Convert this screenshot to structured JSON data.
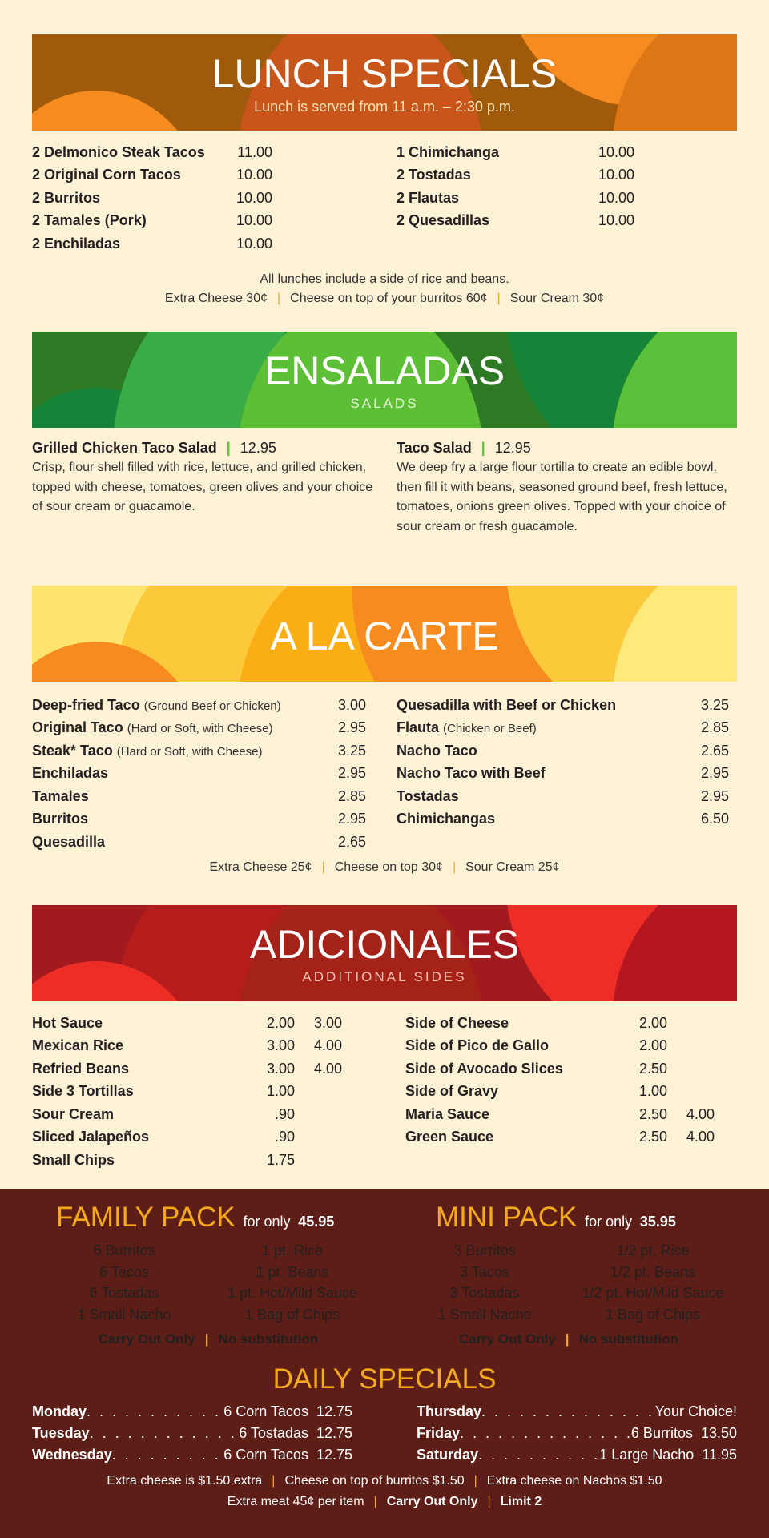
{
  "colors": {
    "background": "#fdf1d6",
    "dark_section": "#5c1e16",
    "accent": "#f5a91c",
    "lunch": "#e07b16",
    "salads": "#3aa845",
    "carte": "#fbc02d",
    "sides": "#b71c1c"
  },
  "lunch": {
    "title": "LUNCH SPECIALS",
    "subtitle": "Lunch is served from 11 a.m. – 2:30 p.m.",
    "left": [
      {
        "name": "2 Delmonico Steak Tacos",
        "price": "11.00"
      },
      {
        "name": "2 Original Corn Tacos",
        "price": "10.00"
      },
      {
        "name": "2 Burritos",
        "price": "10.00"
      },
      {
        "name": "2 Tamales (Pork)",
        "price": "10.00"
      },
      {
        "name": "2 Enchiladas",
        "price": "10.00"
      }
    ],
    "right": [
      {
        "name": "1 Chimichanga",
        "price": "10.00"
      },
      {
        "name": "2 Tostadas",
        "price": "10.00"
      },
      {
        "name": "2 Flautas",
        "price": "10.00"
      },
      {
        "name": "2 Quesadillas",
        "price": "10.00"
      }
    ],
    "note": "All lunches include a side of rice and beans.",
    "extras": [
      "Extra Cheese 30¢",
      "Cheese on top of your burritos 60¢",
      "Sour Cream 30¢"
    ]
  },
  "salads": {
    "title": "ENSALADAS",
    "subtitle": "SALADS",
    "items": [
      {
        "name": "Grilled Chicken Taco Salad",
        "price": "12.95",
        "desc": "Crisp, flour shell filled with rice, lettuce, and grilled chicken, topped with cheese, tomatoes, green olives and your choice of sour cream or guacamole."
      },
      {
        "name": "Taco Salad",
        "price": "12.95",
        "desc": "We deep fry a large flour tortilla to create an edible bowl, then fill it with beans, seasoned ground beef, fresh lettuce, tomatoes, onions green olives. Topped with your choice of sour cream or fresh guacamole."
      }
    ]
  },
  "carte": {
    "title": "A LA CARTE",
    "left": [
      {
        "name": "Deep-fried Taco",
        "detail": "(Ground Beef or Chicken)",
        "price": "3.00"
      },
      {
        "name": "Original Taco",
        "detail": "(Hard or Soft, with Cheese)",
        "price": "2.95"
      },
      {
        "name": "Steak* Taco",
        "detail": "(Hard or Soft, with Cheese)",
        "price": "3.25"
      },
      {
        "name": "Enchiladas",
        "price": "2.95"
      },
      {
        "name": "Tamales",
        "price": "2.85"
      },
      {
        "name": "Burritos",
        "price": "2.95"
      },
      {
        "name": "Quesadilla",
        "price": "2.65"
      }
    ],
    "right": [
      {
        "name": "Quesadilla with Beef or Chicken",
        "price": "3.25"
      },
      {
        "name": "Flauta",
        "detail": "(Chicken or Beef)",
        "price": "2.85"
      },
      {
        "name": "Nacho Taco",
        "price": "2.65"
      },
      {
        "name": "Nacho Taco with Beef",
        "price": "2.95"
      },
      {
        "name": "Tostadas",
        "price": "2.95"
      },
      {
        "name": "Chimichangas",
        "price": "6.50"
      }
    ],
    "extras": [
      "Extra Cheese 25¢",
      "Cheese on top 30¢",
      "Sour Cream 25¢"
    ]
  },
  "sides": {
    "title": "ADICIONALES",
    "subtitle": "ADDITIONAL SIDES",
    "left": [
      {
        "name": "Hot Sauce",
        "p1": "2.00",
        "p2": "3.00"
      },
      {
        "name": "Mexican Rice",
        "p1": "3.00",
        "p2": "4.00"
      },
      {
        "name": "Refried Beans",
        "p1": "3.00",
        "p2": "4.00"
      },
      {
        "name": "Side 3 Tortillas",
        "p1": "1.00"
      },
      {
        "name": "Sour Cream",
        "p1": ".90"
      },
      {
        "name": "Sliced Jalapeños",
        "p1": ".90"
      },
      {
        "name": "Small Chips",
        "p1": "1.75"
      }
    ],
    "right": [
      {
        "name": "Side of Cheese",
        "p1": "2.00"
      },
      {
        "name": "Side of Pico de Gallo",
        "p1": "2.00"
      },
      {
        "name": "Side of Avocado Slices",
        "p1": "2.50"
      },
      {
        "name": "Side of Gravy",
        "p1": "1.00"
      },
      {
        "name": "Maria Sauce",
        "p1": "2.50",
        "p2": "4.00"
      },
      {
        "name": "Green Sauce",
        "p1": "2.50",
        "p2": "4.00"
      }
    ]
  },
  "family": {
    "title": "FAMILY PACK",
    "for": "for only",
    "price": "45.95",
    "items": [
      "6 Burritos",
      "1 pt. Rice",
      "6 Tacos",
      "1 pt. Beans",
      "6 Tostadas",
      "1 pt. Hot/Mild Sauce",
      "1 Small Nacho",
      "1 Bag of Chips"
    ],
    "notes": [
      "Carry Out Only",
      "No substitution"
    ]
  },
  "mini": {
    "title": "MINI PACK",
    "for": "for only",
    "price": "35.95",
    "items": [
      "3 Burritos",
      "1/2 pt. Rice",
      "3 Tacos",
      "1/2 pt. Beans",
      "3 Tostadas",
      "1/2 pt. Hot/Mild Sauce",
      "1 Small Nacho",
      "1 Bag of Chips"
    ],
    "notes": [
      "Carry Out Only",
      "No substitution"
    ]
  },
  "daily": {
    "title": "DAILY SPECIALS",
    "left": [
      {
        "day": "Monday",
        "item": "6 Corn Tacos",
        "price": "12.75"
      },
      {
        "day": "Tuesday",
        "item": "6 Tostadas",
        "price": "12.75"
      },
      {
        "day": "Wednesday",
        "item": "6 Corn Tacos",
        "price": "12.75"
      }
    ],
    "right": [
      {
        "day": "Thursday",
        "item": "Your Choice!",
        "price": ""
      },
      {
        "day": "Friday",
        "item": "6 Burritos",
        "price": "13.50"
      },
      {
        "day": "Saturday",
        "item": "1 Large Nacho",
        "price": "11.95"
      }
    ],
    "notes1": [
      "Extra cheese is $1.50 extra",
      "Cheese on top of burritos $1.50",
      "Extra cheese on Nachos $1.50"
    ],
    "notes2": [
      "Extra meat 45¢ per item",
      "Carry Out Only",
      "Limit 2"
    ]
  }
}
